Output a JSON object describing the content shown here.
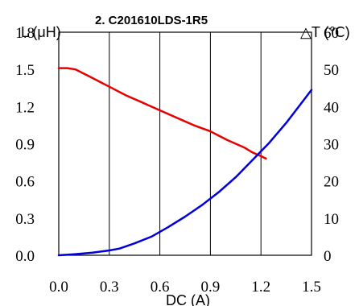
{
  "chart_data": {
    "type": "line",
    "title": "2. C201610LDS-1R5",
    "xlabel": "DC (A)",
    "ylabel_left": "L (μH)",
    "ylabel_right": "△T (℃)",
    "x_ticks": [
      "0.0",
      "0.3",
      "0.6",
      "0.9",
      "1.2",
      "1.5"
    ],
    "y_left_ticks": [
      "0.0",
      "0.3",
      "0.6",
      "0.9",
      "1.2",
      "1.5",
      "1.8"
    ],
    "y_right_ticks": [
      "0",
      "10",
      "20",
      "30",
      "40",
      "50",
      "60"
    ],
    "xlim": [
      0,
      1.5
    ],
    "ylim_left": [
      0,
      1.8
    ],
    "ylim_right": [
      0,
      60
    ],
    "grid": "vertical",
    "series": [
      {
        "axis": "left",
        "color": "#e60000",
        "x": [
          0.0,
          0.05,
          0.1,
          0.2,
          0.3,
          0.4,
          0.5,
          0.6,
          0.7,
          0.8,
          0.9,
          1.0,
          1.05,
          1.1,
          1.15,
          1.2,
          1.23
        ],
        "y": [
          1.51,
          1.51,
          1.5,
          1.43,
          1.36,
          1.29,
          1.23,
          1.17,
          1.11,
          1.05,
          1.0,
          0.93,
          0.9,
          0.87,
          0.83,
          0.8,
          0.78
        ]
      },
      {
        "axis": "right",
        "color": "#0000dc",
        "x": [
          0.0,
          0.1,
          0.2,
          0.3,
          0.36,
          0.45,
          0.55,
          0.65,
          0.75,
          0.85,
          0.95,
          1.05,
          1.15,
          1.25,
          1.35,
          1.45,
          1.5
        ],
        "y": [
          0,
          0.3,
          0.7,
          1.3,
          1.8,
          3.2,
          5.0,
          7.6,
          10.4,
          13.5,
          17.0,
          21.0,
          25.6,
          30.3,
          35.6,
          41.5,
          44.5
        ]
      }
    ]
  }
}
